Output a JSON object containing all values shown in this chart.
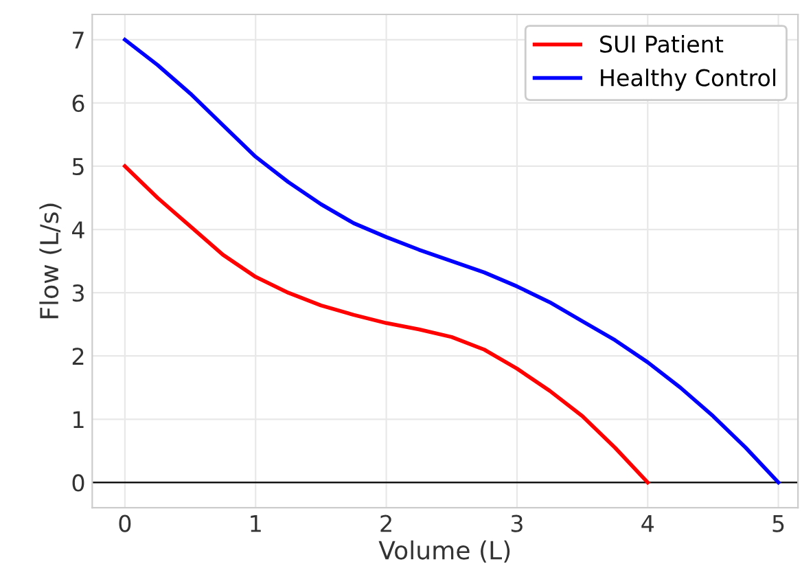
{
  "chart_data": {
    "type": "line",
    "xlabel": "Volume (L)",
    "ylabel": "Flow (L/s)",
    "series": [
      {
        "name": "SUI Patient",
        "color": "#ff0000",
        "x": [
          0,
          0.25,
          0.5,
          0.75,
          1,
          1.25,
          1.5,
          1.75,
          2,
          2.25,
          2.5,
          2.75,
          3,
          3.25,
          3.5,
          3.75,
          4
        ],
        "values": [
          5.0,
          4.5,
          4.05,
          3.6,
          3.25,
          3.0,
          2.8,
          2.65,
          2.52,
          2.42,
          2.3,
          2.1,
          1.8,
          1.45,
          1.05,
          0.55,
          0
        ]
      },
      {
        "name": "Healthy Control",
        "color": "#0000ff",
        "x": [
          0,
          0.25,
          0.5,
          0.75,
          1,
          1.25,
          1.5,
          1.75,
          2,
          2.25,
          2.5,
          2.75,
          3,
          3.25,
          3.5,
          3.75,
          4,
          4.25,
          4.5,
          4.75,
          5
        ],
        "values": [
          7.0,
          6.6,
          6.15,
          5.65,
          5.15,
          4.75,
          4.4,
          4.1,
          3.88,
          3.68,
          3.5,
          3.32,
          3.1,
          2.85,
          2.55,
          2.25,
          1.9,
          1.5,
          1.05,
          0.55,
          0
        ]
      }
    ],
    "xlim": [
      -0.25,
      5.15
    ],
    "ylim": [
      -0.4,
      7.4
    ],
    "xticks": [
      0,
      1,
      2,
      3,
      4,
      5
    ],
    "yticks": [
      0,
      1,
      2,
      3,
      4,
      5,
      6,
      7
    ],
    "ref_lines": [
      {
        "axis": "y",
        "value": 0,
        "color": "#000000"
      }
    ],
    "grid": true,
    "legend": "top right",
    "line_style": "solid",
    "marker": "none"
  }
}
